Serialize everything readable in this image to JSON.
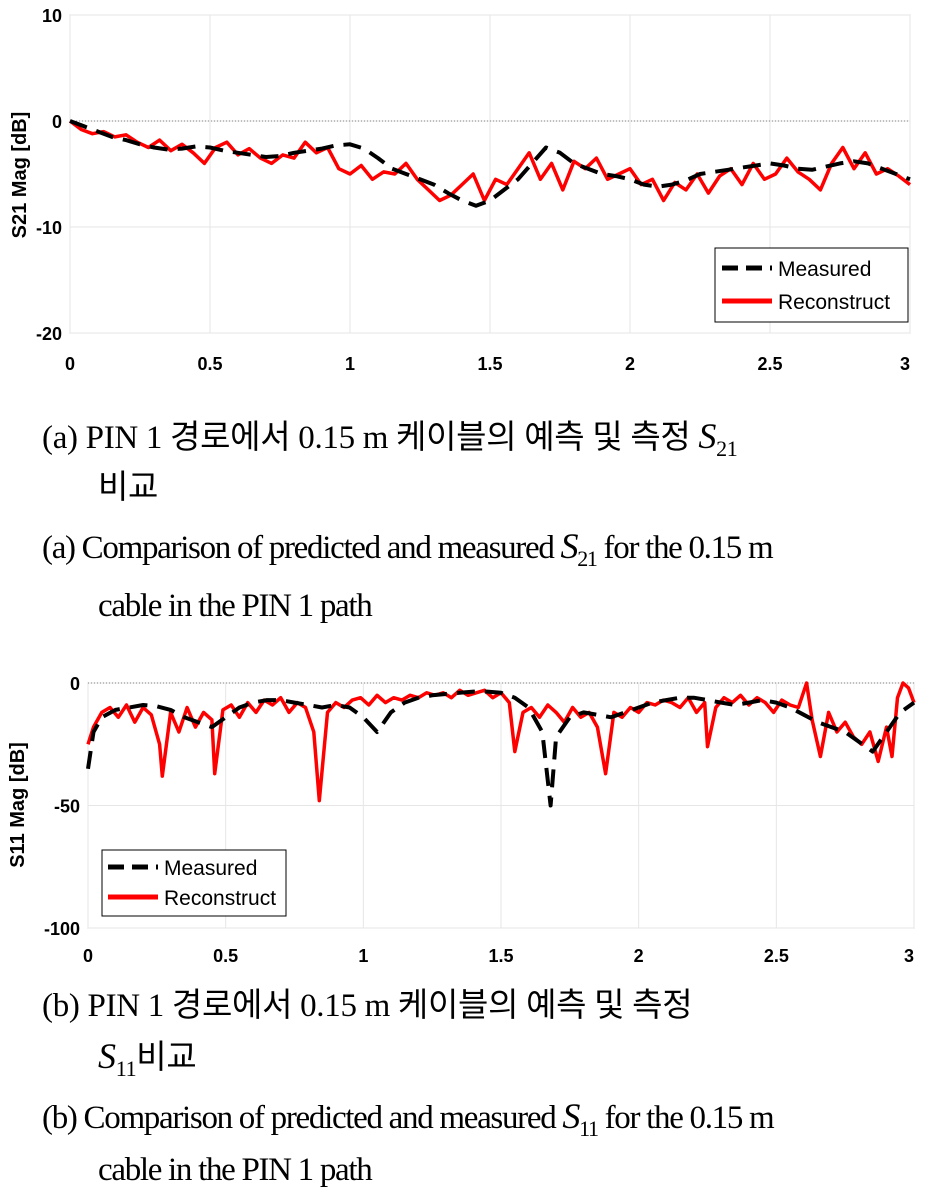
{
  "captions": {
    "a_ko_line1_prefix": "(a) PIN 1 경로에서 0.15 m 케이블의 예측 및 측정 ",
    "a_ko_line2": "비교",
    "a_en_line1_prefix": "(a) Comparison of predicted and measured ",
    "a_en_line1_suffix": " for the 0.15 m",
    "a_en_line2": "cable in the PIN 1 path",
    "b_ko_line1": "(b) PIN 1 경로에서 0.15 m 케이블의 예측 및 측정",
    "b_ko_line2_suffix": "비교",
    "b_en_line1_prefix": "(b) Comparison of predicted and measured ",
    "b_en_line1_suffix": " for the 0.15 m",
    "b_en_line2": "cable in the PIN 1 path",
    "s_letter": "S",
    "s21_sub": "21",
    "s11_sub": "11"
  },
  "chart_data": [
    {
      "id": "chart-a",
      "type": "line",
      "title": "",
      "xlabel": "",
      "ylabel": "S21 Mag [dB]",
      "xlim": [
        0,
        3
      ],
      "ylim": [
        -20,
        10
      ],
      "xticks": [
        "0",
        "0.5",
        "1",
        "1.5",
        "2",
        "2.5",
        "3"
      ],
      "xtick_values": [
        0,
        0.5,
        1,
        1.5,
        2,
        2.5,
        3
      ],
      "yticks": [
        "10",
        "0",
        "-10",
        "-20"
      ],
      "ytick_values": [
        10,
        0,
        -10,
        -20
      ],
      "grid": true,
      "reference_line": 0,
      "legend_position": "bottom-right",
      "colors": {
        "measured": "#000000",
        "reconstruct": "#ff0000",
        "grid": "#e6e6e6",
        "reference": "#808080"
      },
      "series": [
        {
          "name": "Measured",
          "style": "dashed",
          "x": [
            0,
            0.05,
            0.1,
            0.15,
            0.2,
            0.25,
            0.3,
            0.35,
            0.4,
            0.45,
            0.5,
            0.55,
            0.6,
            0.65,
            0.7,
            0.75,
            0.8,
            0.85,
            0.9,
            0.95,
            1.0,
            1.05,
            1.1,
            1.15,
            1.2,
            1.25,
            1.3,
            1.35,
            1.4,
            1.45,
            1.5,
            1.55,
            1.6,
            1.65,
            1.7,
            1.75,
            1.8,
            1.85,
            1.9,
            1.95,
            2.0,
            2.05,
            2.1,
            2.15,
            2.2,
            2.25,
            2.3,
            2.35,
            2.4,
            2.45,
            2.5,
            2.55,
            2.6,
            2.65,
            2.7,
            2.75,
            2.8,
            2.85,
            2.9,
            2.95,
            3.0
          ],
          "values": [
            0,
            -0.5,
            -1,
            -1.5,
            -1.8,
            -2.2,
            -2.5,
            -2.7,
            -2.6,
            -2.4,
            -2.5,
            -2.8,
            -3.0,
            -3.2,
            -3.4,
            -3.3,
            -3.0,
            -2.8,
            -2.6,
            -2.3,
            -2.2,
            -2.6,
            -3.5,
            -4.5,
            -5.0,
            -5.5,
            -6.0,
            -6.8,
            -7.5,
            -8.0,
            -7.5,
            -6.5,
            -5.5,
            -4.0,
            -2.5,
            -3.0,
            -4.0,
            -4.5,
            -5.0,
            -5.2,
            -5.5,
            -6.0,
            -6.2,
            -6.0,
            -5.6,
            -5.0,
            -4.8,
            -4.6,
            -4.4,
            -4.2,
            -4.0,
            -4.2,
            -4.5,
            -4.6,
            -4.3,
            -4.0,
            -3.8,
            -4.0,
            -4.5,
            -5.0,
            -5.5
          ]
        },
        {
          "name": "Reconstruct",
          "style": "solid",
          "x": [
            0,
            0.04,
            0.08,
            0.12,
            0.16,
            0.2,
            0.24,
            0.28,
            0.32,
            0.36,
            0.4,
            0.44,
            0.48,
            0.52,
            0.56,
            0.6,
            0.64,
            0.68,
            0.72,
            0.76,
            0.8,
            0.84,
            0.88,
            0.92,
            0.96,
            1.0,
            1.04,
            1.08,
            1.12,
            1.16,
            1.2,
            1.24,
            1.28,
            1.32,
            1.36,
            1.4,
            1.44,
            1.48,
            1.52,
            1.56,
            1.6,
            1.64,
            1.68,
            1.72,
            1.76,
            1.8,
            1.84,
            1.88,
            1.92,
            1.96,
            2.0,
            2.04,
            2.08,
            2.12,
            2.16,
            2.2,
            2.24,
            2.28,
            2.32,
            2.36,
            2.4,
            2.44,
            2.48,
            2.52,
            2.56,
            2.6,
            2.64,
            2.68,
            2.72,
            2.76,
            2.8,
            2.84,
            2.88,
            2.92,
            2.96,
            3.0
          ],
          "values": [
            0,
            -0.8,
            -1.2,
            -1.0,
            -1.5,
            -1.3,
            -2.0,
            -2.5,
            -1.8,
            -2.8,
            -2.2,
            -3.0,
            -4.0,
            -2.5,
            -2.0,
            -3.2,
            -2.6,
            -3.5,
            -4.0,
            -3.2,
            -3.5,
            -2.0,
            -3.0,
            -2.5,
            -4.5,
            -5.0,
            -4.2,
            -5.5,
            -4.8,
            -5.0,
            -4.0,
            -5.5,
            -6.5,
            -7.5,
            -7.0,
            -6.0,
            -5.0,
            -7.5,
            -5.5,
            -6.0,
            -4.5,
            -3.0,
            -5.5,
            -4.0,
            -6.5,
            -3.8,
            -4.5,
            -3.5,
            -5.5,
            -5.0,
            -4.5,
            -6.0,
            -5.5,
            -7.5,
            -5.8,
            -6.5,
            -5.0,
            -6.8,
            -5.2,
            -4.5,
            -6.0,
            -4.0,
            -5.5,
            -5.0,
            -3.5,
            -4.8,
            -5.5,
            -6.5,
            -4.0,
            -2.5,
            -4.5,
            -3.0,
            -5.0,
            -4.5,
            -5.2,
            -6.0
          ]
        }
      ]
    },
    {
      "id": "chart-b",
      "type": "line",
      "title": "",
      "xlabel": "",
      "ylabel": "S11 Mag [dB]",
      "xlim": [
        0,
        3
      ],
      "ylim": [
        -100,
        0
      ],
      "xticks": [
        "0",
        "0.5",
        "1",
        "1.5",
        "2",
        "2.5",
        "3"
      ],
      "xtick_values": [
        0,
        0.5,
        1,
        1.5,
        2,
        2.5,
        3
      ],
      "yticks": [
        "0",
        "-50",
        "-100"
      ],
      "ytick_values": [
        0,
        -50,
        -100
      ],
      "grid": true,
      "reference_line": 0,
      "legend_position": "bottom-left",
      "colors": {
        "measured": "#000000",
        "reconstruct": "#ff0000",
        "grid": "#e6e6e6",
        "reference": "#808080"
      },
      "series": [
        {
          "name": "Measured",
          "style": "dashed",
          "x": [
            0,
            0.02,
            0.05,
            0.1,
            0.15,
            0.2,
            0.25,
            0.3,
            0.35,
            0.4,
            0.45,
            0.5,
            0.55,
            0.6,
            0.65,
            0.7,
            0.75,
            0.8,
            0.85,
            0.9,
            0.95,
            1.0,
            1.05,
            1.1,
            1.15,
            1.2,
            1.25,
            1.3,
            1.35,
            1.4,
            1.45,
            1.5,
            1.55,
            1.6,
            1.65,
            1.68,
            1.7,
            1.75,
            1.8,
            1.85,
            1.9,
            1.95,
            2.0,
            2.05,
            2.1,
            2.15,
            2.2,
            2.25,
            2.3,
            2.35,
            2.4,
            2.45,
            2.5,
            2.55,
            2.6,
            2.65,
            2.7,
            2.75,
            2.8,
            2.85,
            2.9,
            2.95,
            3.0
          ],
          "values": [
            -35,
            -20,
            -14,
            -11,
            -10,
            -9,
            -9.5,
            -11,
            -14,
            -16,
            -18,
            -14,
            -10,
            -8,
            -7,
            -7,
            -8,
            -9,
            -10,
            -9,
            -10,
            -14,
            -20,
            -12,
            -8,
            -6,
            -5,
            -4.5,
            -4,
            -3.5,
            -3.5,
            -4,
            -6,
            -10,
            -20,
            -50,
            -22,
            -14,
            -12,
            -13,
            -14,
            -12,
            -10,
            -8,
            -7,
            -6,
            -6,
            -7,
            -8,
            -9,
            -8,
            -7,
            -8,
            -10,
            -13,
            -16,
            -18,
            -20,
            -24,
            -28,
            -20,
            -12,
            -8
          ]
        },
        {
          "name": "Reconstruct",
          "style": "solid",
          "x": [
            0,
            0.02,
            0.05,
            0.08,
            0.11,
            0.14,
            0.17,
            0.2,
            0.23,
            0.26,
            0.27,
            0.3,
            0.33,
            0.36,
            0.39,
            0.42,
            0.45,
            0.46,
            0.49,
            0.52,
            0.55,
            0.58,
            0.61,
            0.64,
            0.67,
            0.7,
            0.73,
            0.76,
            0.79,
            0.82,
            0.84,
            0.87,
            0.9,
            0.93,
            0.96,
            0.99,
            1.02,
            1.05,
            1.08,
            1.11,
            1.14,
            1.17,
            1.2,
            1.23,
            1.26,
            1.29,
            1.32,
            1.35,
            1.38,
            1.41,
            1.44,
            1.47,
            1.5,
            1.53,
            1.55,
            1.58,
            1.61,
            1.64,
            1.67,
            1.7,
            1.73,
            1.76,
            1.79,
            1.82,
            1.85,
            1.88,
            1.91,
            1.94,
            1.97,
            2.0,
            2.03,
            2.06,
            2.09,
            2.12,
            2.15,
            2.18,
            2.21,
            2.24,
            2.25,
            2.28,
            2.31,
            2.34,
            2.37,
            2.4,
            2.43,
            2.46,
            2.49,
            2.52,
            2.55,
            2.58,
            2.61,
            2.63,
            2.66,
            2.69,
            2.72,
            2.75,
            2.78,
            2.81,
            2.84,
            2.87,
            2.9,
            2.92,
            2.94,
            2.96,
            2.98,
            3.0
          ],
          "values": [
            -25,
            -18,
            -12,
            -10,
            -14,
            -9,
            -16,
            -10,
            -13,
            -25,
            -38,
            -12,
            -20,
            -10,
            -18,
            -12,
            -15,
            -37,
            -11,
            -9,
            -14,
            -8,
            -12,
            -7,
            -9,
            -6,
            -12,
            -8,
            -10,
            -20,
            -48,
            -12,
            -8,
            -10,
            -7,
            -6,
            -9,
            -5,
            -8,
            -6,
            -7,
            -5,
            -6,
            -4,
            -5,
            -4,
            -6,
            -3,
            -5,
            -4,
            -3,
            -6,
            -4,
            -8,
            -28,
            -12,
            -10,
            -14,
            -9,
            -12,
            -16,
            -10,
            -14,
            -12,
            -18,
            -37,
            -12,
            -14,
            -10,
            -12,
            -8,
            -9,
            -7,
            -8,
            -10,
            -6,
            -12,
            -8,
            -26,
            -10,
            -6,
            -8,
            -5,
            -9,
            -6,
            -8,
            -12,
            -7,
            -9,
            -10,
            0,
            -15,
            -30,
            -12,
            -20,
            -16,
            -22,
            -25,
            -20,
            -32,
            -18,
            -30,
            -6,
            0,
            -2,
            -8
          ]
        }
      ]
    }
  ]
}
